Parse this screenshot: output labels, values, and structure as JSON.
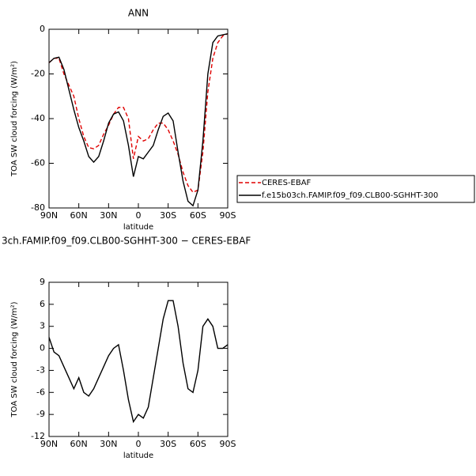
{
  "chart_data": [
    {
      "type": "line",
      "title": "ANN",
      "xlabel": "latitude",
      "ylabel": "TOA SW cloud forcing (W/m²)",
      "x": [
        90,
        85,
        80,
        75,
        70,
        65,
        60,
        55,
        50,
        45,
        40,
        35,
        30,
        25,
        20,
        15,
        10,
        5,
        0,
        -5,
        -10,
        -15,
        -20,
        -25,
        -30,
        -35,
        -40,
        -45,
        -50,
        -55,
        -60,
        -65,
        -70,
        -75,
        -80,
        -85,
        -90
      ],
      "xlim": [
        90,
        -90
      ],
      "xticks": [
        {
          "value": 90,
          "label": "90N"
        },
        {
          "value": 60,
          "label": "60N"
        },
        {
          "value": 30,
          "label": "30N"
        },
        0,
        {
          "value": -30,
          "label": "30S"
        },
        {
          "value": -60,
          "label": "60S"
        },
        {
          "value": -90,
          "label": "90S"
        }
      ],
      "ylim": [
        -80,
        0
      ],
      "yticks": [
        0,
        -20,
        -40,
        -60,
        -80
      ],
      "legend": "right",
      "series": [
        {
          "name": "CERES-EBAF",
          "color": "#e00000",
          "dashed": true,
          "values": [
            -15,
            -13,
            -13,
            -20,
            -25,
            -30,
            -40,
            -48,
            -53,
            -53.5,
            -52,
            -47,
            -43,
            -38,
            -35,
            -35,
            -40,
            -58,
            -48,
            -50,
            -49,
            -45,
            -42,
            -42,
            -45,
            -50,
            -56,
            -64,
            -70,
            -73,
            -72,
            -55,
            -28,
            -13,
            -6,
            -3,
            -2
          ]
        },
        {
          "name": "f.e15b03ch.FAMIP.f09_f09.CLB00-SGHHT-300",
          "color": "#000000",
          "dashed": false,
          "values": [
            -15,
            -13,
            -12.5,
            -18,
            -27,
            -36,
            -44,
            -50,
            -57,
            -59.5,
            -57,
            -50,
            -42,
            -38,
            -37,
            -41,
            -52,
            -66,
            -57,
            -58,
            -55,
            -52,
            -45,
            -39,
            -37.5,
            -41,
            -55,
            -68,
            -77,
            -79,
            -72,
            -50,
            -20,
            -6,
            -3,
            -2.5,
            -2
          ]
        }
      ]
    },
    {
      "type": "line",
      "title": "3ch.FAMIP.f09_f09.CLB00-SGHHT-300 − CERES-EBAF",
      "xlabel": "latitude",
      "ylabel": "TOA SW cloud forcing (W/m²)",
      "x": [
        90,
        85,
        80,
        75,
        70,
        65,
        60,
        55,
        50,
        45,
        40,
        35,
        30,
        25,
        20,
        15,
        10,
        5,
        0,
        -5,
        -10,
        -15,
        -20,
        -25,
        -30,
        -35,
        -40,
        -45,
        -50,
        -55,
        -60,
        -65,
        -70,
        -75,
        -80,
        -85,
        -90
      ],
      "xlim": [
        90,
        -90
      ],
      "xticks": [
        {
          "value": 90,
          "label": "90N"
        },
        {
          "value": 60,
          "label": "60N"
        },
        {
          "value": 30,
          "label": "30N"
        },
        0,
        {
          "value": -30,
          "label": "30S"
        },
        {
          "value": -60,
          "label": "60S"
        },
        {
          "value": -90,
          "label": "90S"
        }
      ],
      "ylim": [
        -12,
        9
      ],
      "yticks": [
        9,
        6,
        3,
        0,
        -3,
        -6,
        -9,
        -12
      ],
      "series": [
        {
          "color": "#000000",
          "dashed": false,
          "values": [
            1.5,
            -0.5,
            -1,
            -2.5,
            -4,
            -5.5,
            -4,
            -6,
            -6.5,
            -5.5,
            -4,
            -2.5,
            -1,
            0,
            0.5,
            -3,
            -7,
            -10,
            -9,
            -9.5,
            -8,
            -4,
            0,
            4,
            6.5,
            6.5,
            3,
            -2,
            -5.5,
            -6,
            -3,
            3,
            4,
            3,
            0,
            0,
            0.5
          ]
        }
      ]
    }
  ]
}
